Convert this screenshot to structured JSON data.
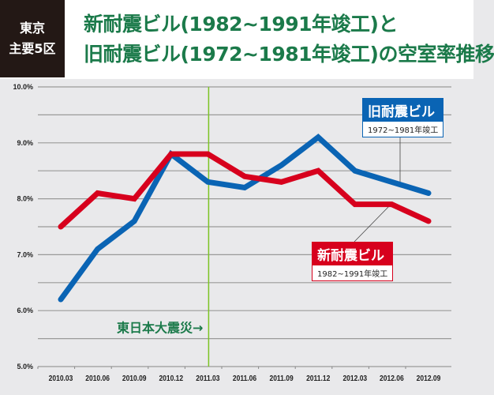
{
  "header": {
    "region": [
      "東京",
      "主要5区"
    ],
    "title_lines": [
      "新耐震ビル(1982~1991年竣工)と",
      "旧耐震ビル(1972~1981年竣工)の空室率推移"
    ]
  },
  "chart_data": {
    "type": "line",
    "categories": [
      "2010.03",
      "2010.06",
      "2010.09",
      "2010.12",
      "2011.03",
      "2011.06",
      "2011.09",
      "2011.12",
      "2012.03",
      "2012.06",
      "2012.09"
    ],
    "y_ticks": [
      "5.0%",
      "6.0%",
      "7.0%",
      "8.0%",
      "9.0%",
      "10.0%"
    ],
    "ylim": [
      5.0,
      10.0
    ],
    "grid": true,
    "series": [
      {
        "name": "旧耐震ビル",
        "subtitle": "1972~1981年竣工",
        "color": "#0a64b4",
        "values": [
          6.2,
          7.1,
          7.6,
          8.8,
          8.3,
          8.2,
          8.6,
          9.1,
          8.5,
          8.3,
          8.1
        ]
      },
      {
        "name": "新耐震ビル",
        "subtitle": "1982~1991年竣工",
        "color": "#d7001d",
        "values": [
          7.5,
          8.1,
          8.0,
          8.8,
          8.8,
          8.4,
          8.3,
          8.5,
          7.9,
          7.9,
          7.6
        ]
      }
    ],
    "annotation": {
      "text": "東日本大震災→",
      "category": "2011.03",
      "color": "#1b7a4a",
      "line_color": "#7cc324"
    }
  }
}
